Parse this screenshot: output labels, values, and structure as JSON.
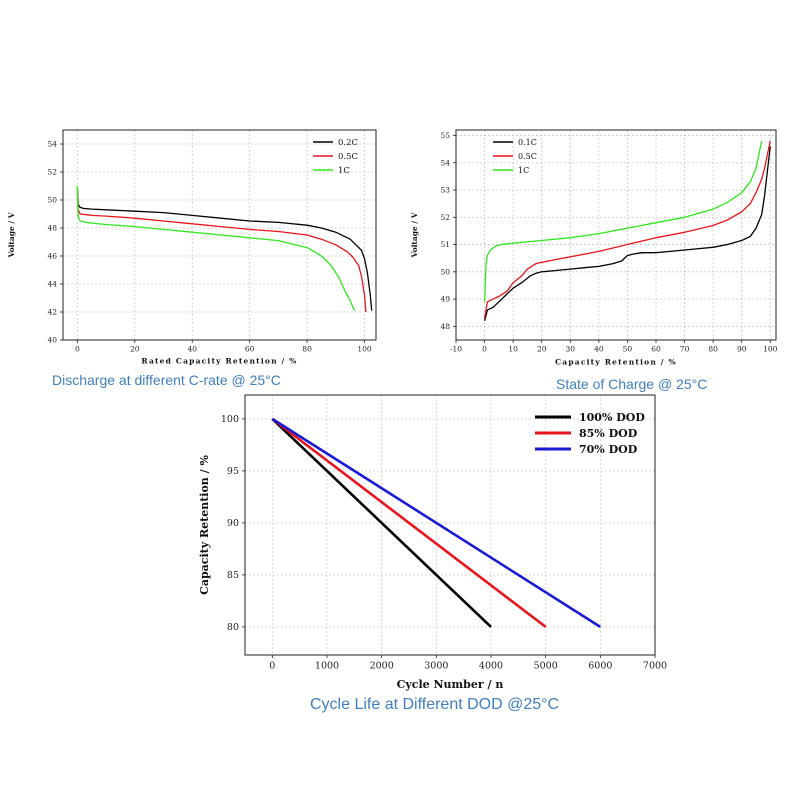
{
  "captions": [
    "Discharge at different C-rate @ 25°C",
    "State of Charge @ 25°C",
    "Cycle Life at Different DOD @25°C"
  ],
  "chart_data": [
    {
      "type": "line",
      "title": "",
      "xlabel": "Rated Capacity Retention / %",
      "ylabel": "Voltage / V",
      "xlim": [
        -5,
        104
      ],
      "ylim": [
        40,
        55
      ],
      "xticks": [
        0,
        20,
        40,
        60,
        80,
        100
      ],
      "yticks": [
        40,
        42,
        44,
        46,
        48,
        50,
        52,
        54
      ],
      "grid": true,
      "legend": "top-right",
      "series": [
        {
          "name": "0.2C",
          "color": "#000000",
          "x": [
            0,
            0.3,
            0.8,
            2,
            5,
            10,
            20,
            30,
            40,
            50,
            60,
            70,
            80,
            85,
            90,
            95,
            97,
            99,
            100,
            101,
            102,
            102.5
          ],
          "y": [
            50.8,
            49.7,
            49.5,
            49.4,
            49.35,
            49.3,
            49.2,
            49.1,
            48.9,
            48.7,
            48.5,
            48.4,
            48.2,
            48.0,
            47.7,
            47.2,
            46.8,
            46.4,
            45.8,
            44.8,
            43.2,
            42.1
          ]
        },
        {
          "name": "0.5C",
          "color": "#e8141b",
          "x": [
            0,
            0.3,
            1,
            3,
            5,
            10,
            20,
            30,
            40,
            50,
            60,
            70,
            80,
            85,
            90,
            94,
            96,
            98,
            99,
            100,
            100.5
          ],
          "y": [
            50.6,
            49.3,
            49.0,
            48.95,
            48.9,
            48.85,
            48.7,
            48.5,
            48.3,
            48.1,
            47.9,
            47.75,
            47.5,
            47.2,
            46.8,
            46.3,
            45.9,
            45.3,
            44.5,
            43.2,
            42.0
          ]
        },
        {
          "name": "1C",
          "color": "#2ee81b",
          "x": [
            0,
            0.3,
            1,
            3,
            5,
            10,
            20,
            30,
            40,
            50,
            60,
            70,
            80,
            85,
            88,
            91,
            93,
            95,
            96.5
          ],
          "y": [
            51.0,
            48.8,
            48.5,
            48.4,
            48.35,
            48.25,
            48.1,
            47.9,
            47.7,
            47.5,
            47.3,
            47.1,
            46.6,
            46.0,
            45.4,
            44.5,
            43.6,
            42.8,
            42.1
          ]
        }
      ]
    },
    {
      "type": "line",
      "title": "",
      "xlabel": "Capacity Retention / %",
      "ylabel": "Voltage / V",
      "xlim": [
        -10,
        102
      ],
      "ylim": [
        47.5,
        55.2
      ],
      "xticks": [
        -10,
        0,
        10,
        20,
        30,
        40,
        50,
        60,
        70,
        80,
        90,
        100
      ],
      "yticks": [
        48,
        49,
        50,
        51,
        52,
        53,
        54,
        55
      ],
      "grid": true,
      "legend": "top-left",
      "series": [
        {
          "name": "0.1C",
          "color": "#000000",
          "x": [
            0,
            1,
            3,
            5,
            8,
            10,
            13,
            16,
            18,
            20,
            25,
            30,
            35,
            40,
            45,
            48,
            50,
            52,
            55,
            60,
            65,
            70,
            75,
            80,
            85,
            90,
            93,
            95,
            97,
            98,
            99,
            100
          ],
          "y": [
            48.2,
            48.6,
            48.7,
            48.9,
            49.2,
            49.4,
            49.6,
            49.85,
            49.95,
            50.0,
            50.05,
            50.1,
            50.15,
            50.2,
            50.3,
            50.4,
            50.6,
            50.65,
            50.7,
            50.7,
            50.75,
            50.8,
            50.85,
            50.9,
            51.0,
            51.15,
            51.3,
            51.6,
            52.1,
            52.8,
            53.7,
            54.6
          ]
        },
        {
          "name": "0.5C",
          "color": "#e8141b",
          "x": [
            0,
            1,
            3,
            5,
            8,
            10,
            13,
            15,
            18,
            20,
            25,
            30,
            40,
            50,
            60,
            70,
            80,
            85,
            90,
            93,
            95,
            97,
            98,
            99,
            100
          ],
          "y": [
            48.3,
            48.9,
            49.0,
            49.1,
            49.3,
            49.6,
            49.85,
            50.1,
            50.3,
            50.35,
            50.45,
            50.55,
            50.75,
            51.0,
            51.25,
            51.45,
            51.7,
            51.9,
            52.2,
            52.5,
            52.9,
            53.4,
            53.8,
            54.3,
            54.8
          ]
        },
        {
          "name": "1C",
          "color": "#2ee81b",
          "x": [
            0,
            0.5,
            1,
            2,
            4,
            6,
            10,
            20,
            30,
            40,
            50,
            60,
            70,
            80,
            85,
            90,
            93,
            95,
            96,
            97
          ],
          "y": [
            48.9,
            50.3,
            50.6,
            50.8,
            50.95,
            51.0,
            51.05,
            51.15,
            51.25,
            51.4,
            51.6,
            51.8,
            52.0,
            52.3,
            52.55,
            52.9,
            53.3,
            53.8,
            54.3,
            54.8
          ]
        }
      ]
    },
    {
      "type": "line",
      "title": "",
      "xlabel": "Cycle Number / n",
      "ylabel": "Capacity Retention / %",
      "xlim": [
        -500,
        7000
      ],
      "ylim": [
        77.3,
        102.3
      ],
      "xticks": [
        0,
        1000,
        2000,
        3000,
        4000,
        5000,
        6000,
        7000
      ],
      "yticks": [
        80,
        85,
        90,
        95,
        100
      ],
      "grid": true,
      "legend": "top-right",
      "series": [
        {
          "name": "100% DOD",
          "color": "#000000",
          "x": [
            0,
            4000
          ],
          "y": [
            100,
            80
          ]
        },
        {
          "name": "85% DOD",
          "color": "#e8141b",
          "x": [
            0,
            5000
          ],
          "y": [
            100,
            80
          ]
        },
        {
          "name": "70% DOD",
          "color": "#1a1ad6",
          "x": [
            0,
            6000
          ],
          "y": [
            100,
            80
          ]
        }
      ]
    }
  ]
}
